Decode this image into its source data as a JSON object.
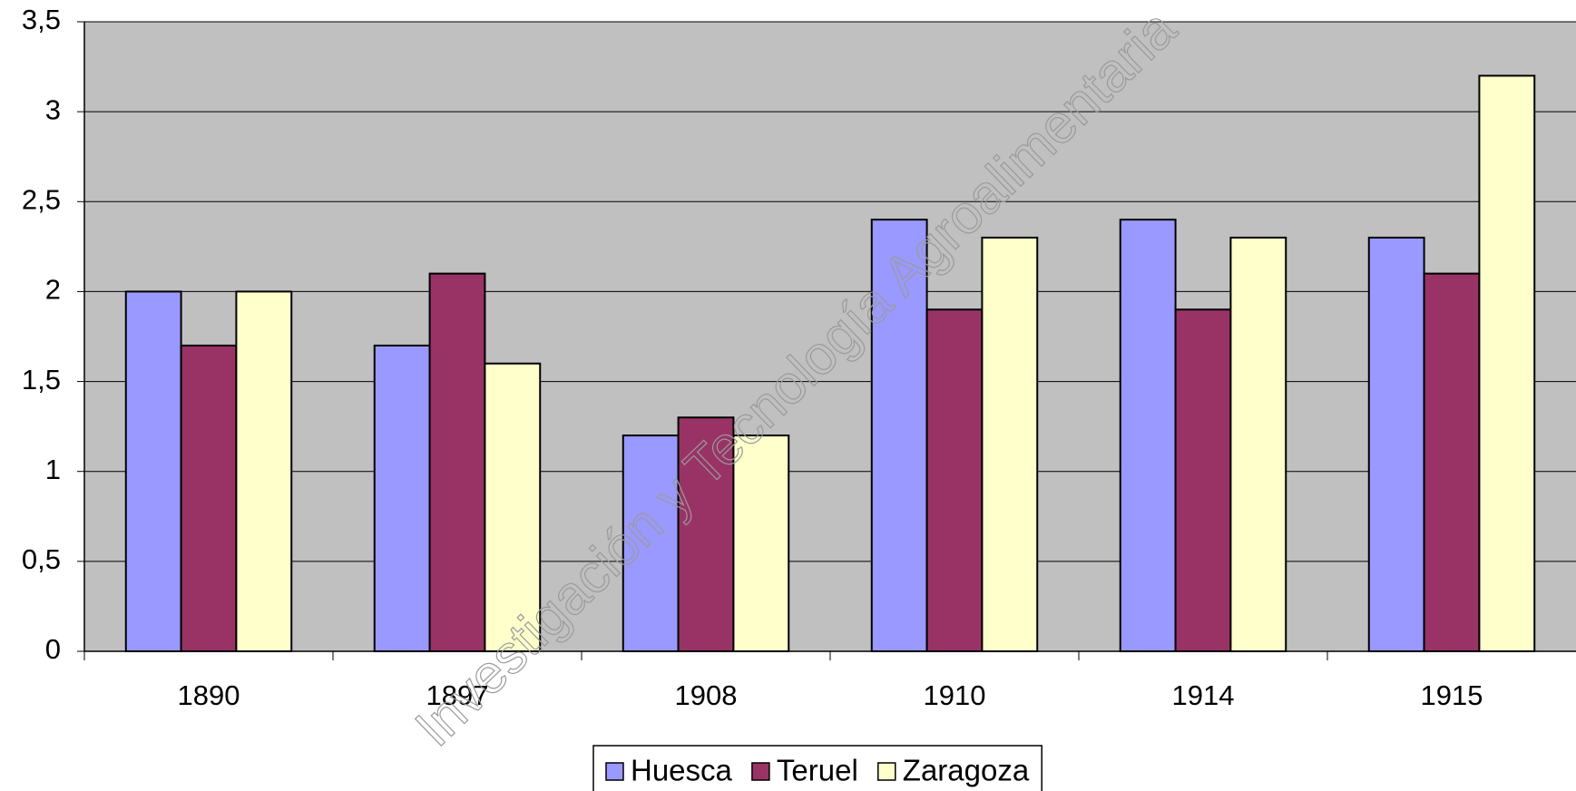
{
  "chart_data": {
    "type": "bar",
    "watermark": "Investigación y Tecnología Agroalimentaria",
    "categories": [
      "1890",
      "1897",
      "1908",
      "1910",
      "1914",
      "1915"
    ],
    "series": [
      {
        "name": "Huesca",
        "color": "#9999ff",
        "values": [
          2,
          1.7,
          1.2,
          2.4,
          2.4,
          2.3
        ]
      },
      {
        "name": "Teruel",
        "color": "#993366",
        "values": [
          1.7,
          2.1,
          1.3,
          1.9,
          1.9,
          2.1
        ]
      },
      {
        "name": "Zaragoza",
        "color": "#ffffcc",
        "values": [
          2,
          1.6,
          1.2,
          2.3,
          2.3,
          3.2
        ]
      }
    ],
    "ylim": [
      0,
      3.5
    ],
    "yticks": [
      0,
      {
        "value": 0.5,
        "label": "0,5"
      },
      1,
      {
        "value": 1.5,
        "label": "1,5"
      },
      2,
      {
        "value": 2.5,
        "label": "2,5"
      },
      3,
      {
        "value": 3.5,
        "label": "3,5"
      }
    ],
    "grid": true,
    "plot_background": "#c0c0c0",
    "legend": "bottom"
  }
}
